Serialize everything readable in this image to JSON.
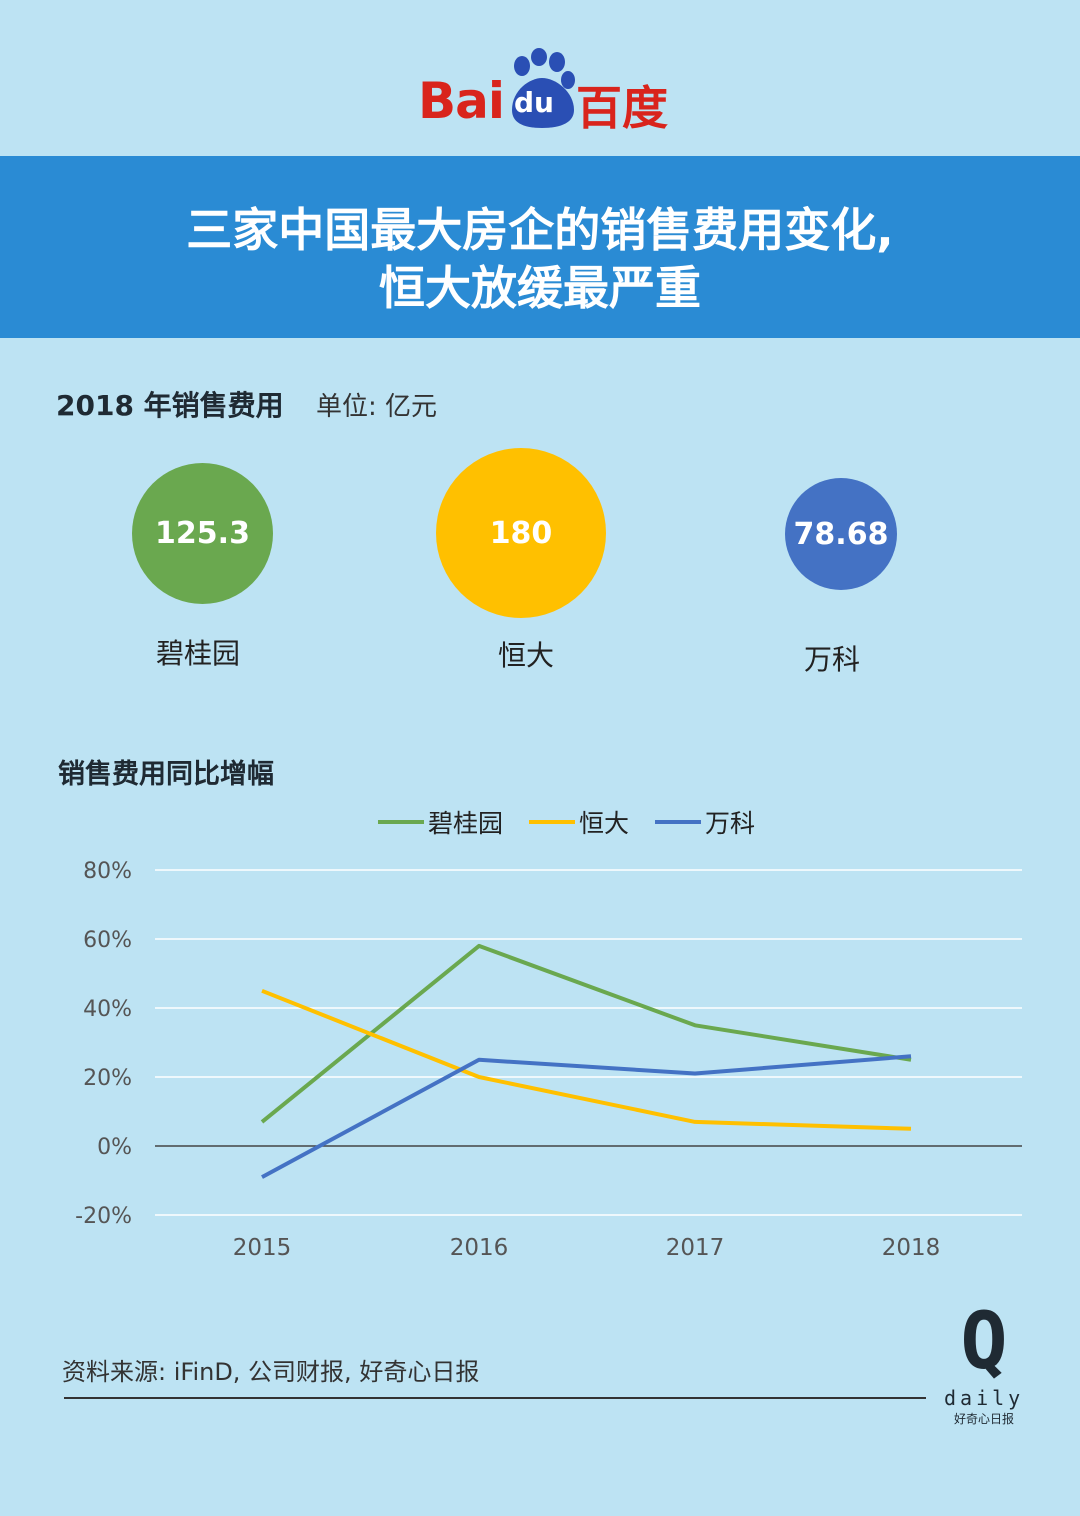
{
  "logo": {
    "bai": "Bai",
    "du": "du",
    "cn": "百度"
  },
  "header": {
    "title_line1": "三家中国最大房企的销售费用变化,",
    "title_line2": "恒大放缓最严重"
  },
  "summary": {
    "title": "2018 年销售费用",
    "unit": "单位: 亿元",
    "items": [
      {
        "name": "碧桂园",
        "value": "125.3",
        "color": "#6aa84f"
      },
      {
        "name": "恒大",
        "value": "180",
        "color": "#ffc000"
      },
      {
        "name": "万科",
        "value": "78.68",
        "color": "#4472c4"
      }
    ]
  },
  "growth_section_title": "销售费用同比增幅",
  "chart_data": {
    "type": "line",
    "title": "销售费用同比增幅",
    "categories": [
      "2015",
      "2016",
      "2017",
      "2018"
    ],
    "series": [
      {
        "name": "碧桂园",
        "color": "#6aa84f",
        "values": [
          7,
          58,
          35,
          25
        ]
      },
      {
        "name": "恒大",
        "color": "#ffc000",
        "values": [
          45,
          20,
          7,
          5
        ]
      },
      {
        "name": "万科",
        "color": "#4472c4",
        "values": [
          -9,
          25,
          21,
          26
        ]
      }
    ],
    "ylim": [
      -20,
      80
    ],
    "yticks": [
      "80%",
      "60%",
      "40%",
      "20%",
      "0%",
      "-20%"
    ],
    "legend": "top-center",
    "grid": true
  },
  "footer": {
    "source": "资料来源: iFinD, 公司财报, 好奇心日报",
    "brand_q": "Q",
    "brand_daily": "daily",
    "brand_cn": "好奇心日报"
  }
}
